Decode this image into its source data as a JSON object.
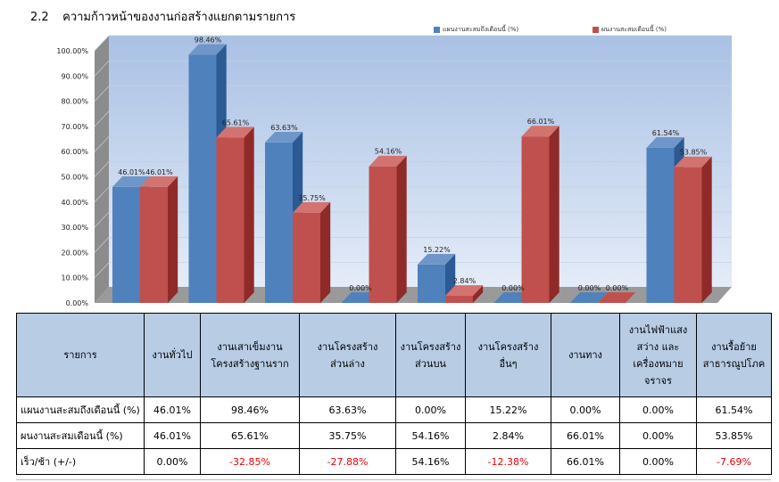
{
  "section": {
    "number": "2.2",
    "title": "ความก้าวหน้าของงานก่อสร้างแยกตามรายการ"
  },
  "colors": {
    "plan": "#4f81bd",
    "plan_side": "#2c5a93",
    "plan_top": "#6f96c8",
    "actual": "#c0504d",
    "actual_side": "#8e2b28",
    "actual_top": "#d27370",
    "negative": "#e8000b",
    "header_bg": "#b8cce4"
  },
  "chart_data": {
    "type": "bar",
    "title": "",
    "categories": [
      "งานทั่วไป",
      "งานเสาเข็มงานโครงสร้างฐานราก",
      "งานโครงสร้างส่วนล่าง",
      "งานโครงสร้างส่วนบน",
      "งานโครงสร้างอื่นๆ",
      "งานทาง",
      "งานไฟฟ้าแสงสว่าง และเครื่องหมายจราจร",
      "งานรื้อย้ายสาธารณูปโภค"
    ],
    "series": [
      {
        "name": "แผนงานสะสมถึงเดือนนี้ (%)",
        "values": [
          46.01,
          98.46,
          63.63,
          0.0,
          15.22,
          0.0,
          0.0,
          61.54
        ],
        "labels": [
          "46.01%",
          "98.46%",
          "63.63%",
          "0.00%",
          "15.22%",
          "0.00%",
          "0.00%",
          "61.54%"
        ]
      },
      {
        "name": "ผนงานสะสมเดือนนี้ (%)",
        "values": [
          46.01,
          65.61,
          35.75,
          54.16,
          2.84,
          66.01,
          0.0,
          53.85
        ],
        "labels": [
          "46.01%",
          "65.61%",
          "35.75%",
          "54.16%",
          "2.84%",
          "66.01%",
          "0.00%",
          "53.85%"
        ]
      }
    ],
    "ylim": [
      0,
      100
    ],
    "yticks": [
      "0.00%",
      "10.00%",
      "20.00%",
      "30.00%",
      "40.00%",
      "50.00%",
      "60.00%",
      "70.00%",
      "80.00%",
      "90.00%",
      "100.00%"
    ],
    "legend": [
      "แผนงานสะสมถึงเดือนนี้ (%)",
      "ผนงานสะสมเดือนนี้ (%)"
    ],
    "legend_position": "top-right",
    "grid": true
  },
  "table": {
    "header_label": "รายการ",
    "columns": [
      [
        "งานทั่วไป"
      ],
      [
        "งานเสาเข็มงาน",
        "โครงสร้างฐานราก"
      ],
      [
        "งานโครงสร้าง",
        "ส่วนล่าง"
      ],
      [
        "งานโครงสร้าง",
        "ส่วนบน"
      ],
      [
        "งานโครงสร้าง",
        "อื่นๆ"
      ],
      [
        "งานทาง"
      ],
      [
        "งานไฟฟ้าแสง",
        "สว่าง และ",
        "เครื่องหมาย",
        "จราจร"
      ],
      [
        "งานรื้อย้าย",
        "สาธารณูปโภค"
      ]
    ],
    "rows": [
      {
        "label": "แผนงานสะสมถึงเดือนนี้ (%)",
        "cells": [
          "46.01%",
          "98.46%",
          "63.63%",
          "0.00%",
          "15.22%",
          "0.00%",
          "0.00%",
          "61.54%"
        ],
        "neg": [
          false,
          false,
          false,
          false,
          false,
          false,
          false,
          false
        ]
      },
      {
        "label": "ผนงานสะสมเดือนนี้ (%)",
        "cells": [
          "46.01%",
          "65.61%",
          "35.75%",
          "54.16%",
          "2.84%",
          "66.01%",
          "0.00%",
          "53.85%"
        ],
        "neg": [
          false,
          false,
          false,
          false,
          false,
          false,
          false,
          false
        ]
      },
      {
        "label": "เร็ว/ช้า (+/-)",
        "cells": [
          "0.00%",
          "-32.85%",
          "-27.88%",
          "54.16%",
          "-12.38%",
          "66.01%",
          "0.00%",
          "-7.69%"
        ],
        "neg": [
          false,
          true,
          true,
          false,
          true,
          false,
          false,
          true
        ]
      }
    ]
  }
}
